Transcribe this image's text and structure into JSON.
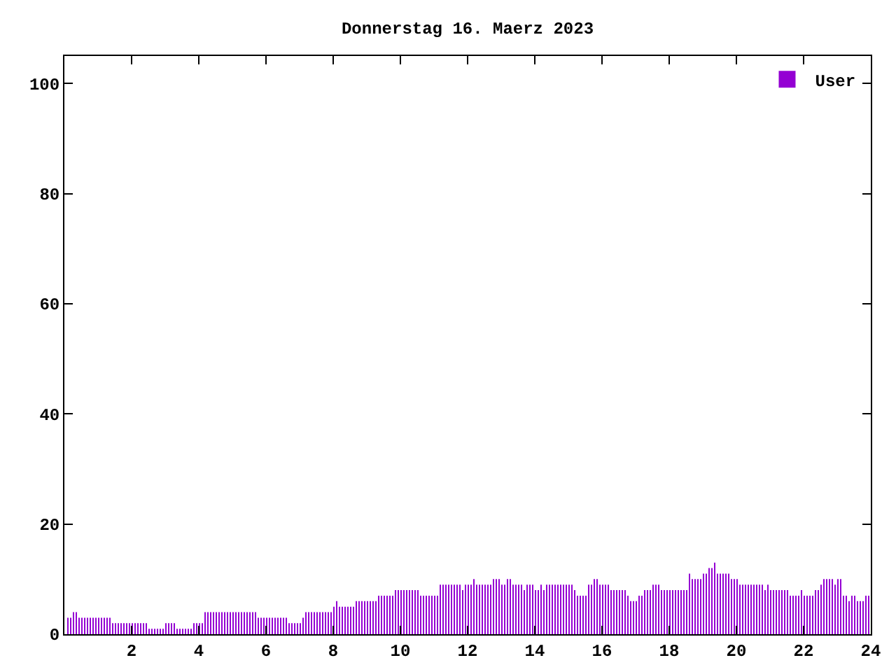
{
  "chart_data": {
    "type": "bar",
    "title": "Donnerstag 16. Maerz 2023",
    "x": [
      0.08,
      0.17,
      0.25,
      0.33,
      0.42,
      0.5,
      0.58,
      0.67,
      0.75,
      0.83,
      0.92,
      1,
      1.08,
      1.17,
      1.25,
      1.33,
      1.42,
      1.5,
      1.58,
      1.67,
      1.75,
      1.83,
      1.92,
      2,
      2.08,
      2.17,
      2.25,
      2.33,
      2.42,
      2.5,
      2.58,
      2.67,
      2.75,
      2.83,
      2.92,
      3,
      3.08,
      3.17,
      3.25,
      3.33,
      3.42,
      3.5,
      3.58,
      3.67,
      3.75,
      3.83,
      3.92,
      4,
      4.08,
      4.17,
      4.25,
      4.33,
      4.42,
      4.5,
      4.58,
      4.67,
      4.75,
      4.83,
      4.92,
      5,
      5.08,
      5.17,
      5.25,
      5.33,
      5.42,
      5.5,
      5.58,
      5.67,
      5.75,
      5.83,
      5.92,
      6,
      6.08,
      6.17,
      6.25,
      6.33,
      6.42,
      6.5,
      6.58,
      6.67,
      6.75,
      6.83,
      6.92,
      7,
      7.08,
      7.17,
      7.25,
      7.33,
      7.42,
      7.5,
      7.58,
      7.67,
      7.75,
      7.83,
      7.92,
      8,
      8.08,
      8.17,
      8.25,
      8.33,
      8.42,
      8.5,
      8.58,
      8.67,
      8.75,
      8.83,
      8.92,
      9,
      9.08,
      9.17,
      9.25,
      9.33,
      9.42,
      9.5,
      9.58,
      9.67,
      9.75,
      9.83,
      9.92,
      10,
      10.08,
      10.17,
      10.25,
      10.33,
      10.42,
      10.5,
      10.58,
      10.67,
      10.75,
      10.83,
      10.92,
      11,
      11.08,
      11.17,
      11.25,
      11.33,
      11.42,
      11.5,
      11.58,
      11.67,
      11.75,
      11.83,
      11.92,
      12,
      12.08,
      12.17,
      12.25,
      12.33,
      12.42,
      12.5,
      12.58,
      12.67,
      12.75,
      12.83,
      12.92,
      13,
      13.08,
      13.17,
      13.25,
      13.33,
      13.42,
      13.5,
      13.58,
      13.67,
      13.75,
      13.83,
      13.92,
      14,
      14.08,
      14.17,
      14.25,
      14.33,
      14.42,
      14.5,
      14.58,
      14.67,
      14.75,
      14.83,
      14.92,
      15,
      15.08,
      15.17,
      15.25,
      15.33,
      15.42,
      15.5,
      15.58,
      15.67,
      15.75,
      15.83,
      15.92,
      16,
      16.08,
      16.17,
      16.25,
      16.33,
      16.42,
      16.5,
      16.58,
      16.67,
      16.75,
      16.83,
      16.92,
      17,
      17.08,
      17.17,
      17.25,
      17.33,
      17.42,
      17.5,
      17.58,
      17.67,
      17.75,
      17.83,
      17.92,
      18,
      18.08,
      18.17,
      18.25,
      18.33,
      18.42,
      18.5,
      18.58,
      18.67,
      18.75,
      18.83,
      18.92,
      19,
      19.08,
      19.17,
      19.25,
      19.33,
      19.42,
      19.5,
      19.58,
      19.67,
      19.75,
      19.83,
      19.92,
      20,
      20.08,
      20.17,
      20.25,
      20.33,
      20.42,
      20.5,
      20.58,
      20.67,
      20.75,
      20.83,
      20.92,
      21,
      21.08,
      21.17,
      21.25,
      21.33,
      21.42,
      21.5,
      21.58,
      21.67,
      21.75,
      21.83,
      21.92,
      22,
      22.08,
      22.17,
      22.25,
      22.33,
      22.42,
      22.5,
      22.58,
      22.67,
      22.75,
      22.83,
      22.92,
      23,
      23.08,
      23.17,
      23.25,
      23.33,
      23.42,
      23.5,
      23.58,
      23.67,
      23.75,
      23.83,
      23.92
    ],
    "series": [
      {
        "name": "User",
        "color": "#9400d3",
        "values": [
          3,
          3,
          4,
          4,
          3,
          3,
          3,
          3,
          3,
          3,
          3,
          3,
          3,
          3,
          3,
          3,
          2,
          2,
          2,
          2,
          2,
          2,
          2,
          2,
          2,
          2,
          2,
          2,
          2,
          1,
          1,
          1,
          1,
          1,
          1,
          2,
          2,
          2,
          2,
          1,
          1,
          1,
          1,
          1,
          1,
          2,
          2,
          2,
          2,
          4,
          4,
          4,
          4,
          4,
          4,
          4,
          4,
          4,
          4,
          4,
          4,
          4,
          4,
          4,
          4,
          4,
          4,
          4,
          3,
          3,
          3,
          3,
          3,
          3,
          3,
          3,
          3,
          3,
          3,
          2,
          2,
          2,
          2,
          2,
          3,
          4,
          4,
          4,
          4,
          4,
          4,
          4,
          4,
          4,
          4,
          5,
          6,
          5,
          5,
          5,
          5,
          5,
          5,
          6,
          6,
          6,
          6,
          6,
          6,
          6,
          6,
          7,
          7,
          7,
          7,
          7,
          7,
          8,
          8,
          8,
          8,
          8,
          8,
          8,
          8,
          8,
          7,
          7,
          7,
          7,
          7,
          7,
          7,
          9,
          9,
          9,
          9,
          9,
          9,
          9,
          9,
          8,
          9,
          9,
          9,
          10,
          9,
          9,
          9,
          9,
          9,
          9,
          10,
          10,
          10,
          9,
          9,
          10,
          10,
          9,
          9,
          9,
          9,
          8,
          9,
          9,
          9,
          8,
          8,
          9,
          8,
          9,
          9,
          9,
          9,
          9,
          9,
          9,
          9,
          9,
          9,
          8,
          7,
          7,
          7,
          7,
          9,
          9,
          10,
          10,
          9,
          9,
          9,
          9,
          8,
          8,
          8,
          8,
          8,
          8,
          7,
          6,
          6,
          6,
          7,
          7,
          8,
          8,
          8,
          9,
          9,
          9,
          8,
          8,
          8,
          8,
          8,
          8,
          8,
          8,
          8,
          8,
          11,
          10,
          10,
          10,
          10,
          11,
          11,
          12,
          12,
          13,
          11,
          11,
          11,
          11,
          11,
          10,
          10,
          10,
          9,
          9,
          9,
          9,
          9,
          9,
          9,
          9,
          9,
          8,
          9,
          8,
          8,
          8,
          8,
          8,
          8,
          8,
          7,
          7,
          7,
          7,
          8,
          7,
          7,
          7,
          7,
          8,
          8,
          9,
          10,
          10,
          10,
          10,
          9,
          10,
          10,
          7,
          7,
          6,
          7,
          7,
          6,
          6,
          6,
          7,
          7
        ]
      }
    ],
    "xlim": [
      0,
      24
    ],
    "ylim": [
      0,
      105
    ],
    "xticks": [
      2,
      4,
      6,
      8,
      10,
      12,
      14,
      16,
      18,
      20,
      22,
      24
    ],
    "yticks": [
      0,
      20,
      40,
      60,
      80,
      100
    ],
    "legend": "top right"
  }
}
